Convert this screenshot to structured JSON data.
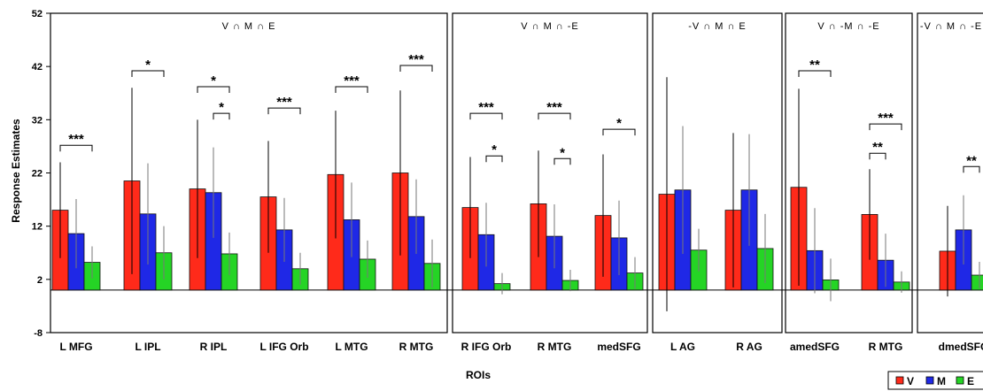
{
  "chart_data": {
    "type": "bar",
    "ylabel": "Response Estimates",
    "xlabel": "ROIs",
    "ylim": [
      -8,
      52
    ],
    "yticks": [
      "-8",
      "2",
      "12",
      "22",
      "32",
      "42",
      "52"
    ],
    "categories": [
      "L MFG",
      "L IPL",
      "R IPL",
      "L IFG Orb",
      "L MTG",
      "R MTG",
      "R IFG Orb",
      "R MTG",
      "medSFG",
      "L AG",
      "R AG",
      "amedSFG",
      "R MTG",
      "dmedSFG"
    ],
    "panels": [
      {
        "label": "V ∩ M ∩ E",
        "categories": [
          "L MFG",
          "L IPL",
          "R IPL",
          "L IFG Orb",
          "L MTG",
          "R MTG"
        ]
      },
      {
        "label": "V ∩ M ∩ -E",
        "categories": [
          "R IFG Orb",
          "R MTG",
          "medSFG"
        ]
      },
      {
        "label": "-V ∩ M ∩ E",
        "categories": [
          "L AG",
          "R AG"
        ]
      },
      {
        "label": "V ∩ -M ∩ -E",
        "categories": [
          "amedSFG",
          "R MTG"
        ]
      },
      {
        "label": "-V ∩ M ∩ -E",
        "categories": [
          "dmedSFG"
        ]
      }
    ],
    "series": [
      {
        "name": "V",
        "color": "#ff2a1a",
        "values": [
          15,
          20.5,
          19,
          17.5,
          21.7,
          22,
          15.5,
          16.2,
          14,
          18,
          15,
          19.3,
          14.2,
          7.3
        ],
        "errors": [
          9,
          17.5,
          13,
          10.5,
          12,
          15.5,
          9.5,
          10,
          11.5,
          22,
          14.5,
          18.5,
          8.5,
          8.5
        ]
      },
      {
        "name": "M",
        "color": "#1f28e6",
        "values": [
          10.6,
          14.3,
          18.3,
          11.3,
          13.2,
          13.8,
          10.4,
          10.1,
          9.8,
          18.8,
          18.8,
          7.4,
          5.6,
          11.3
        ],
        "errors": [
          6.5,
          9.5,
          8.5,
          6,
          7,
          7,
          6,
          6,
          7,
          12,
          10.5,
          8,
          5,
          6.5
        ]
      },
      {
        "name": "E",
        "color": "#25d425",
        "values": [
          5.2,
          7,
          6.8,
          4,
          5.8,
          5,
          1.2,
          1.8,
          3.2,
          7.5,
          7.8,
          1.9,
          1.5,
          2.8
        ],
        "errors": [
          3,
          5,
          4,
          3,
          3.5,
          4.5,
          2,
          2,
          3,
          4,
          6.5,
          4,
          2,
          2.5
        ]
      }
    ],
    "annotations": [
      {
        "label": "***",
        "category": 0,
        "from": "V",
        "to": "E",
        "height": 27.2
      },
      {
        "label": "*",
        "category": 1,
        "from": "V",
        "to": "E",
        "height": 41.2
      },
      {
        "label": "*",
        "category": 2,
        "from": "V",
        "to": "E",
        "height": 38.2
      },
      {
        "label": "*",
        "category": 2,
        "from": "M",
        "to": "E",
        "height": 33.2
      },
      {
        "label": "***",
        "category": 3,
        "from": "V",
        "to": "E",
        "height": 34.2
      },
      {
        "label": "***",
        "category": 4,
        "from": "V",
        "to": "E",
        "height": 38.2
      },
      {
        "label": "***",
        "category": 5,
        "from": "V",
        "to": "E",
        "height": 42.2
      },
      {
        "label": "***",
        "category": 6,
        "from": "V",
        "to": "E",
        "height": 33.2
      },
      {
        "label": "*",
        "category": 6,
        "from": "M",
        "to": "E",
        "height": 25.2
      },
      {
        "label": "***",
        "category": 7,
        "from": "V",
        "to": "E",
        "height": 33.2
      },
      {
        "label": "*",
        "category": 7,
        "from": "M",
        "to": "E",
        "height": 24.7
      },
      {
        "label": "*",
        "category": 8,
        "from": "V",
        "to": "E",
        "height": 30.2
      },
      {
        "label": "**",
        "category": 11,
        "from": "V",
        "to": "E",
        "height": 41.2
      },
      {
        "label": "***",
        "category": 12,
        "from": "V",
        "to": "E",
        "height": 31.2
      },
      {
        "label": "**",
        "category": 12,
        "from": "V",
        "to": "M",
        "height": 25.7
      },
      {
        "label": "**",
        "category": 13,
        "from": "M",
        "to": "E",
        "height": 23.2
      }
    ],
    "legend": {
      "placement": "bottom-right",
      "entries": [
        "V",
        "M",
        "E"
      ]
    },
    "grid": false
  }
}
